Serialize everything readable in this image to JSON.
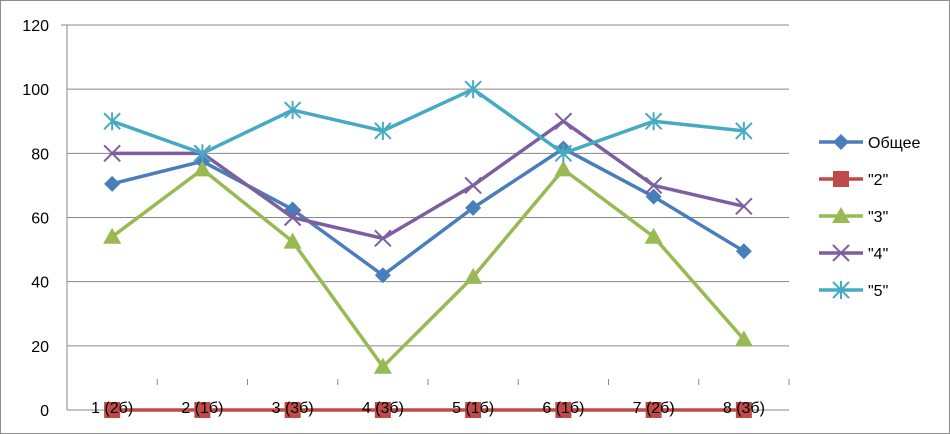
{
  "chart_data": {
    "type": "line",
    "title": "",
    "xlabel": "",
    "ylabel": "",
    "ylim": [
      0,
      120
    ],
    "yticks": [
      0,
      20,
      40,
      60,
      80,
      100,
      120
    ],
    "grid": true,
    "legend_position": "right",
    "categories": [
      "1 (2б)",
      "2 (1б)",
      "3 (3б)",
      "4 (3б)",
      "5 (1б)",
      "6 (1б)",
      "7 (2б)",
      "8 (3б)"
    ],
    "series": [
      {
        "name": "Общее",
        "color": "#4a7ebb",
        "marker": "diamond",
        "values": [
          70.5,
          77.5,
          62.5,
          42,
          63,
          81.5,
          66.5,
          49.5
        ]
      },
      {
        "name": "\"2\"",
        "color": "#be4b48",
        "marker": "square",
        "values": [
          0,
          0,
          0,
          0,
          0,
          0,
          0,
          0
        ]
      },
      {
        "name": "\"3\"",
        "color": "#98b954",
        "marker": "triangle",
        "values": [
          54,
          75,
          52.5,
          13.5,
          41.5,
          75,
          54,
          22
        ]
      },
      {
        "name": "\"4\"",
        "color": "#7d5fa0",
        "marker": "x",
        "values": [
          80,
          80,
          60,
          53.5,
          70,
          90,
          70,
          63.5
        ]
      },
      {
        "name": "\"5\"",
        "color": "#46aac5",
        "marker": "star",
        "values": [
          90,
          80,
          93.5,
          87,
          100,
          80,
          90,
          87
        ]
      }
    ]
  }
}
